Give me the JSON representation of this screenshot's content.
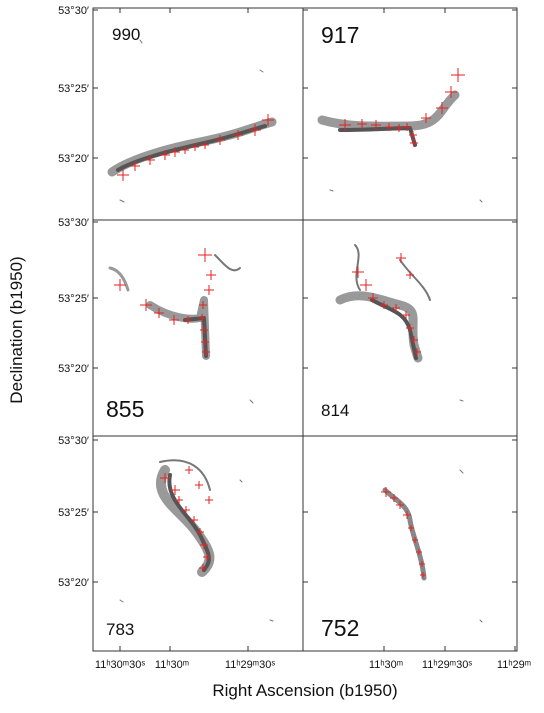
{
  "rows": [
    {
      "yticks": [
        "53°30′",
        "53°25′",
        "53°20′"
      ],
      "panels": [
        "990",
        "917"
      ]
    },
    {
      "yticks": [
        "53°30′",
        "53°25′",
        "53°20′"
      ],
      "panels": [
        "855",
        "814"
      ]
    },
    {
      "yticks": [
        "53°30′",
        "53°25′",
        "53°20′"
      ],
      "panels": [
        "783",
        "752"
      ]
    }
  ],
  "xticks": {
    "left": [
      "11ʰ30ᵐ30ˢ",
      "11ʰ30ᵐ",
      "11ʰ29ᵐ30ˢ"
    ],
    "right": [
      "11ʰ30ᵐ",
      "11ʰ29ᵐ30ˢ",
      "11ʰ29ᵐ"
    ]
  },
  "y_label": "Declination (b1950)",
  "x_label": "Right Ascension (b1950)"
}
